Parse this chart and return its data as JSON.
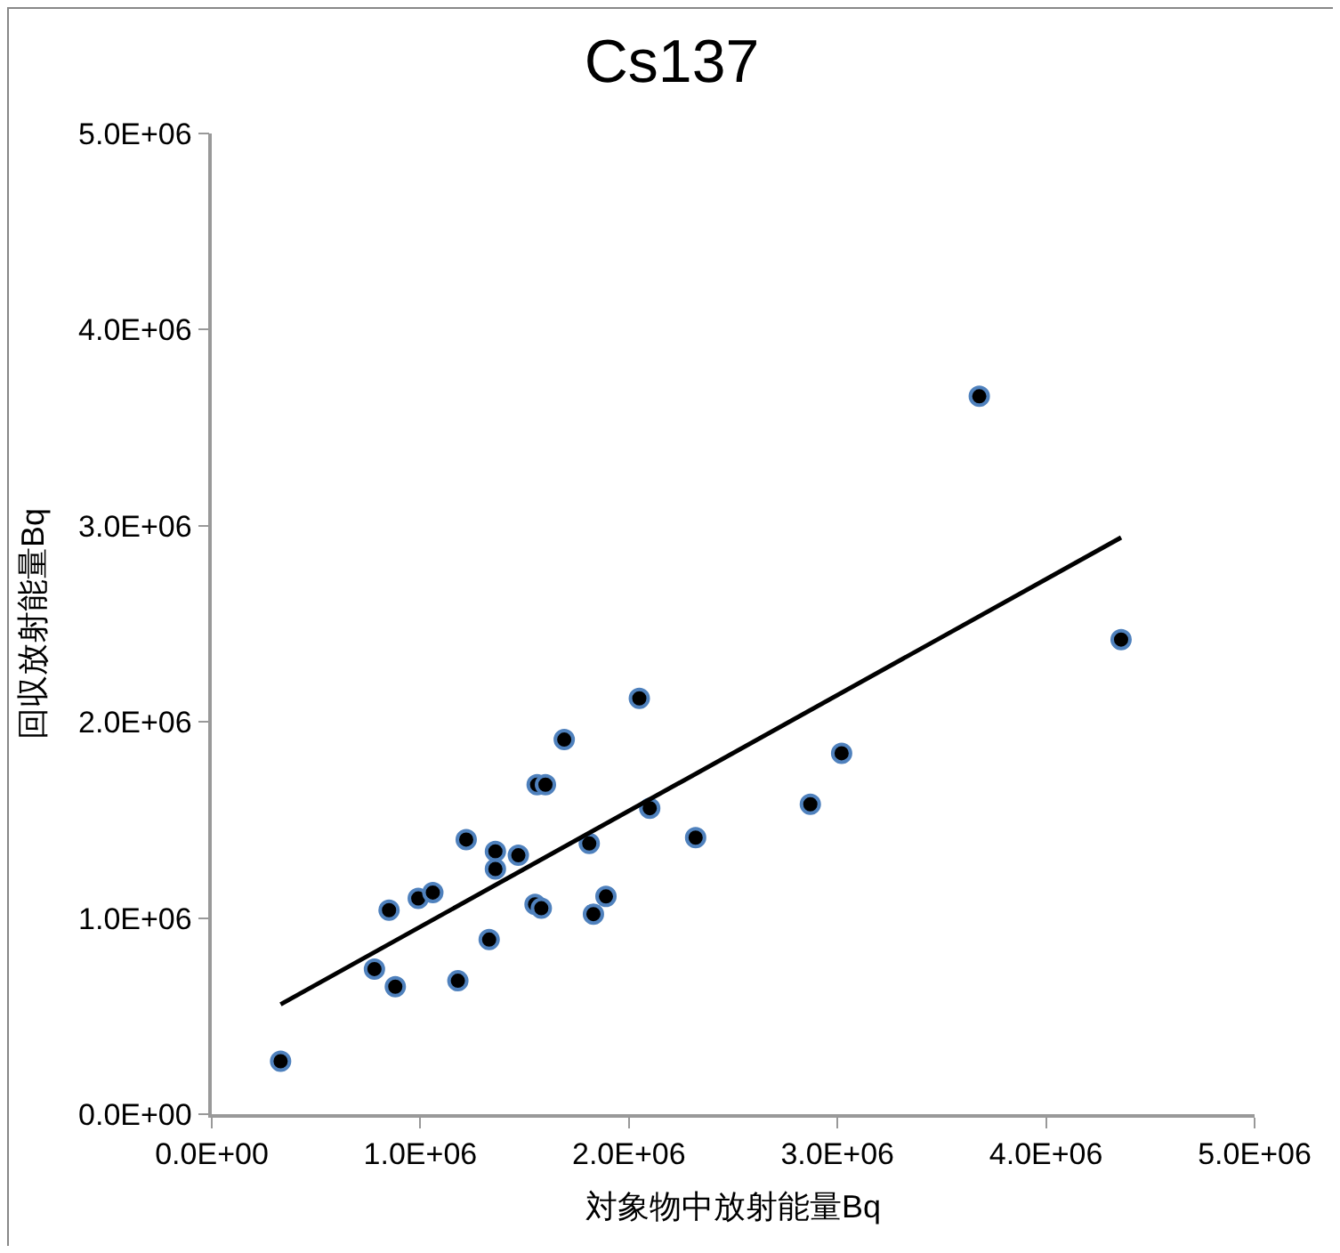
{
  "chart_data": {
    "type": "scatter",
    "title": "Cs137",
    "xlabel": "対象物中放射能量Bq",
    "ylabel": "回収放射能量Bq",
    "xlim": [
      0,
      5000000
    ],
    "ylim": [
      0,
      5000000
    ],
    "xticks": [
      {
        "value": 0,
        "label": "0.0E+00"
      },
      {
        "value": 1000000,
        "label": "1.0E+06"
      },
      {
        "value": 2000000,
        "label": "2.0E+06"
      },
      {
        "value": 3000000,
        "label": "3.0E+06"
      },
      {
        "value": 4000000,
        "label": "4.0E+06"
      },
      {
        "value": 5000000,
        "label": "5.0E+06"
      }
    ],
    "yticks": [
      {
        "value": 0,
        "label": "0.0E+00"
      },
      {
        "value": 1000000,
        "label": "1.0E+06"
      },
      {
        "value": 2000000,
        "label": "2.0E+06"
      },
      {
        "value": 3000000,
        "label": "3.0E+06"
      },
      {
        "value": 4000000,
        "label": "4.0E+06"
      },
      {
        "value": 5000000,
        "label": "5.0E+06"
      }
    ],
    "grid": false,
    "marker": "circle",
    "series": [
      {
        "color": "#000000",
        "x": [
          330000,
          780000,
          880000,
          850000,
          990000,
          1060000,
          1180000,
          1220000,
          1330000,
          1360000,
          1360000,
          1470000,
          1550000,
          1580000,
          1560000,
          1600000,
          1690000,
          1810000,
          1830000,
          1890000,
          2050000,
          2100000,
          2320000,
          2870000,
          3020000,
          3680000,
          4360000
        ],
        "values": [
          270000,
          740000,
          650000,
          1040000,
          1100000,
          1130000,
          680000,
          1400000,
          890000,
          1340000,
          1250000,
          1320000,
          1070000,
          1050000,
          1680000,
          1680000,
          1910000,
          1380000,
          1020000,
          1110000,
          2120000,
          1560000,
          1410000,
          1580000,
          1840000,
          3660000,
          2420000
        ]
      },
      {
        "type": "line",
        "color": "#000000",
        "marker": "none",
        "line_style": "solid",
        "x": [
          330000,
          4360000
        ],
        "values": [
          560000,
          2940000
        ]
      }
    ]
  }
}
